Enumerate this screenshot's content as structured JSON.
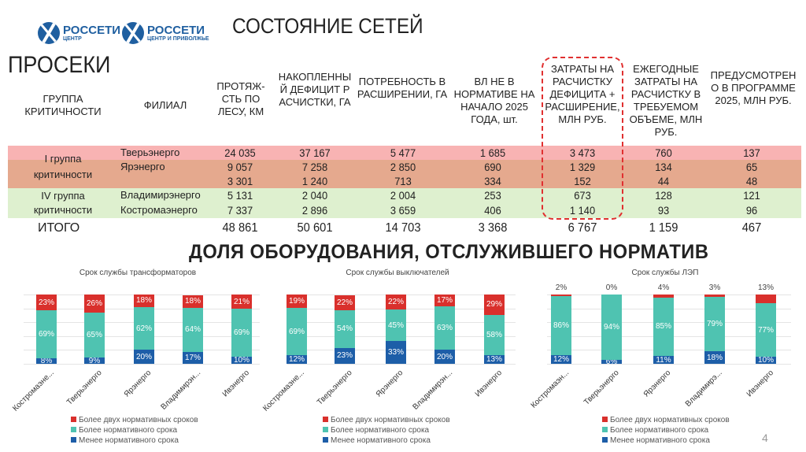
{
  "logos": [
    {
      "name": "РОССЕТИ",
      "sub": "ЦЕНТР"
    },
    {
      "name": "РОССЕТИ",
      "sub": "ЦЕНТР И ПРИВОЛЖЬЕ"
    }
  ],
  "page_title": "СОСТОЯНИЕ СЕТЕЙ",
  "section1_title": "ПРОСЕКИ",
  "section2_title": "ДОЛЯ ОБОРУДОВАНИЯ, ОТСЛУЖИВШЕГО НОРМАТИВ",
  "table": {
    "headers": [
      "ГРУППА КРИТИЧНОСТИ",
      "ФИЛИАЛ",
      "ПРОТЯЖ-СТЬ ПО ЛЕСУ, КМ",
      "НАКОПЛЕННЫЙ ДЕФИЦИТ РАСЧИСТКИ, ГА",
      "ПОТРЕБНОСТЬ В РАСШИРЕНИИ, ГА",
      "ВЛ НЕ В НОРМАТИВЕ НА НАЧАЛО 2025 ГОДА, шт.",
      "ЗАТРАТЫ НА РАСЧИСТКУ ДЕФИЦИТА + РАСШИРЕНИЕ, МЛН РУБ.",
      "ЕЖЕГОДНЫЕ ЗАТРАТЫ НА РАСЧИСТКУ В ТРЕБУЕМОМ ОБЪЕМЕ, МЛН РУБ.",
      "ПРЕДУСМОТРЕНО В ПРОГРАММЕ 2025, МЛН РУБ."
    ],
    "groups": [
      "I группа критичности",
      "IV группа критичности"
    ],
    "rows": [
      {
        "branch": "Тверьэнерго",
        "values": [
          "24 035",
          "37 167",
          "5 477",
          "1 685",
          "3 473",
          "760",
          "137"
        ]
      },
      {
        "branch": "Ярэнерго",
        "values": [
          "9 057",
          "7 258",
          "2 850",
          "690",
          "1 329",
          "134",
          "65"
        ]
      },
      {
        "branch": "",
        "values": [
          "3 301",
          "1 240",
          "713",
          "334",
          "152",
          "44",
          "48"
        ]
      },
      {
        "branch": "Владимирэнерго",
        "values": [
          "5 131",
          "2 040",
          "2 004",
          "253",
          "673",
          "128",
          "121"
        ]
      },
      {
        "branch": "Костромаэнерго",
        "values": [
          "7 337",
          "2 896",
          "3 659",
          "406",
          "1 140",
          "93",
          "96"
        ]
      }
    ],
    "total": {
      "label": "ИТОГО",
      "values": [
        "48 861",
        "50 601",
        "14 703",
        "3 368",
        "6 767",
        "1 159",
        "467"
      ]
    }
  },
  "colors": {
    "group1": "#f8b3b3",
    "group1b": "#e5a98e",
    "group4": "#def0cf",
    "red": "#d9302c",
    "teal": "#4fc3b1",
    "blue": "#1d5ea8"
  },
  "legend": [
    "Более двух нормативных сроков",
    "Более нормативного срока",
    "Менее нормативного срока"
  ],
  "page_number": "4",
  "chart_data": [
    {
      "type": "bar",
      "stacked": true,
      "title": "Срок службы трансформаторов",
      "categories": [
        "Костромаэне...",
        "Тверьэнерго",
        "Ярэнерго",
        "Владимирэн...",
        "Ивэнерго"
      ],
      "series": [
        {
          "name": "Менее нормативного срока",
          "values": [
            8,
            9,
            20,
            17,
            10
          ]
        },
        {
          "name": "Более нормативного срока",
          "values": [
            69,
            65,
            62,
            64,
            69
          ]
        },
        {
          "name": "Более двух нормативных сроков",
          "values": [
            23,
            26,
            18,
            18,
            21
          ]
        }
      ],
      "ylim": [
        0,
        100
      ],
      "legend": "bottom"
    },
    {
      "type": "bar",
      "stacked": true,
      "title": "Срок службы выключателей",
      "categories": [
        "Костромаэне...",
        "Тверьэнерго",
        "Ярэнерго",
        "Владимирэн...",
        "Ивэнерго"
      ],
      "series": [
        {
          "name": "Менее нормативного срока",
          "values": [
            12,
            23,
            33,
            20,
            13
          ]
        },
        {
          "name": "Более нормативного срока",
          "values": [
            69,
            54,
            45,
            63,
            58
          ]
        },
        {
          "name": "Более двух нормативных сроков",
          "values": [
            19,
            22,
            22,
            17,
            29
          ]
        }
      ],
      "ylim": [
        0,
        100
      ],
      "legend": "bottom"
    },
    {
      "type": "bar",
      "stacked": true,
      "title": "Срок службы ЛЭП",
      "categories": [
        "Костромаэн...",
        "Тверьэнерго",
        "Ярэнерго",
        "Владимирэ...",
        "Ивэнерго"
      ],
      "series": [
        {
          "name": "Менее нормативного срока",
          "values": [
            12,
            6,
            11,
            18,
            10
          ]
        },
        {
          "name": "Более нормативного срока",
          "values": [
            86,
            94,
            85,
            79,
            77
          ]
        },
        {
          "name": "Более двух нормативных сроков",
          "values": [
            2,
            0,
            4,
            3,
            13
          ]
        }
      ],
      "ylim": [
        0,
        100
      ],
      "legend": "bottom"
    }
  ]
}
